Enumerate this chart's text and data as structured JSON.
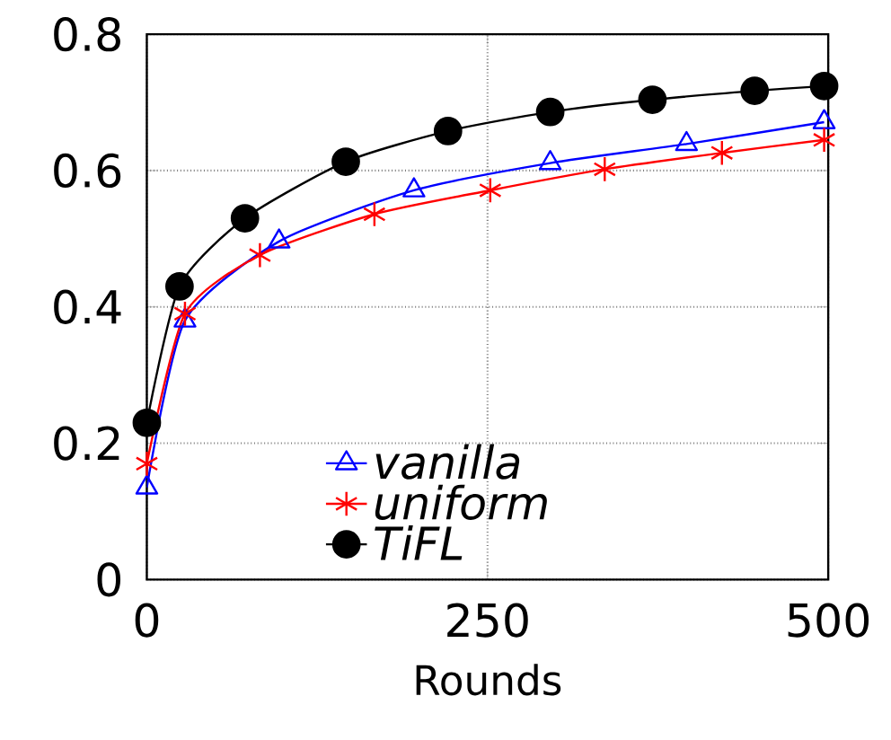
{
  "chart_data": {
    "type": "line",
    "xlabel": "Rounds",
    "xlim": [
      0,
      500
    ],
    "ylim": [
      0,
      0.8
    ],
    "xticks": [
      0,
      250,
      500
    ],
    "yticks": [
      0,
      0.2,
      0.4,
      0.6,
      0.8
    ],
    "grid": true,
    "legend": "bottom",
    "series": [
      {
        "name": "vanilla",
        "color": "#0000ff",
        "marker": "triangle",
        "x": [
          0,
          28,
          97,
          196,
          296,
          396,
          497
        ],
        "values": [
          0.135,
          0.38,
          0.496,
          0.571,
          0.611,
          0.639,
          0.671
        ]
      },
      {
        "name": "uniform",
        "color": "#ff0000",
        "marker": "cross",
        "x": [
          0,
          28,
          83,
          167,
          252,
          336,
          422,
          497
        ],
        "values": [
          0.17,
          0.39,
          0.476,
          0.536,
          0.571,
          0.602,
          0.626,
          0.645
        ]
      },
      {
        "name": "TiFL",
        "color": "#000000",
        "marker": "circle",
        "x": [
          0,
          24,
          72,
          146,
          221,
          296,
          371,
          446,
          497
        ],
        "values": [
          0.23,
          0.43,
          0.53,
          0.613,
          0.658,
          0.686,
          0.704,
          0.717,
          0.724
        ]
      }
    ]
  }
}
